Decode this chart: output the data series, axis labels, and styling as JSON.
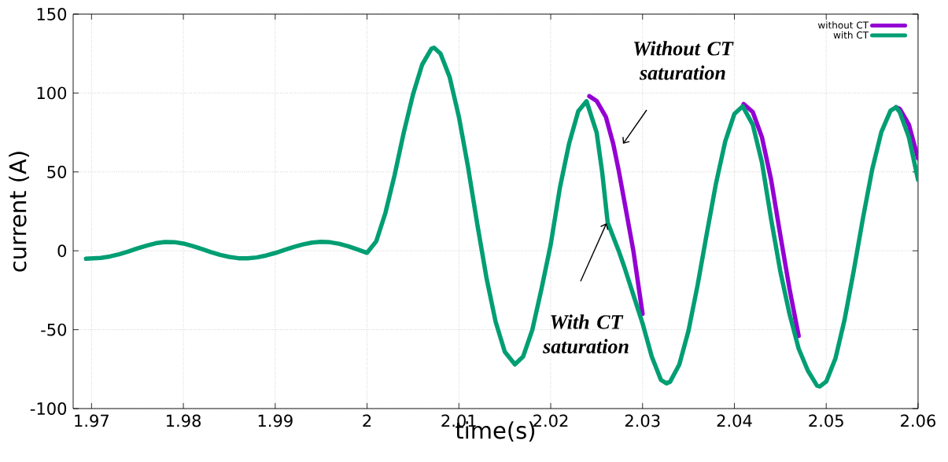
{
  "chart_data": {
    "type": "line",
    "xlabel": "time(s)",
    "ylabel": "current (A)",
    "xlim": [
      1.968,
      2.06
    ],
    "ylim": [
      -100,
      150
    ],
    "xticks": [
      1.97,
      1.98,
      1.99,
      2,
      2.01,
      2.02,
      2.03,
      2.04,
      2.05,
      2.06
    ],
    "yticks": [
      -100,
      -50,
      0,
      50,
      100,
      150
    ],
    "grid": true,
    "legend": "top right",
    "line_style": "solid",
    "series": [
      {
        "name": "without CT",
        "color": "#9400d3",
        "x": [
          2.0242,
          2.025,
          2.026,
          2.0268,
          2.0274,
          2.028,
          2.029,
          2.03,
          2.035,
          2.041,
          2.042,
          2.043,
          2.044,
          2.045,
          2.046,
          2.047,
          2.052,
          2.0576,
          2.058,
          2.059,
          2.06
        ],
        "values": [
          98,
          95,
          85,
          68,
          51,
          32,
          0,
          -40,
          null,
          93,
          88,
          72,
          45,
          10,
          -24,
          -54,
          null,
          91,
          90,
          80,
          58.5
        ]
      },
      {
        "name": "with CT",
        "color": "#009e73",
        "x": [
          1.9694,
          1.971,
          1.972,
          1.973,
          1.974,
          1.975,
          1.976,
          1.977,
          1.978,
          1.979,
          1.98,
          1.981,
          1.982,
          1.983,
          1.984,
          1.985,
          1.986,
          1.987,
          1.988,
          1.989,
          1.99,
          1.991,
          1.992,
          1.993,
          1.994,
          1.995,
          1.996,
          1.997,
          1.998,
          1.999,
          2.0,
          2.001,
          2.002,
          2.003,
          2.004,
          2.005,
          2.006,
          2.007,
          2.0073,
          2.008,
          2.009,
          2.01,
          2.011,
          2.012,
          2.013,
          2.014,
          2.015,
          2.0161,
          2.017,
          2.018,
          2.019,
          2.02,
          2.021,
          2.022,
          2.023,
          2.0239,
          2.025,
          2.0256,
          2.0262,
          2.027,
          2.0274,
          2.028,
          2.029,
          2.03,
          2.031,
          2.032,
          2.0326,
          2.033,
          2.034,
          2.035,
          2.036,
          2.037,
          2.038,
          2.039,
          2.04,
          2.0409,
          2.042,
          2.043,
          2.044,
          2.045,
          2.046,
          2.047,
          2.048,
          2.049,
          2.0493,
          2.05,
          2.051,
          2.052,
          2.053,
          2.054,
          2.055,
          2.056,
          2.057,
          2.0576,
          2.058,
          2.059,
          2.06
        ],
        "values": [
          -5,
          -4.5,
          -3.6,
          -2.2,
          -0.5,
          1.5,
          3.3,
          4.8,
          5.6,
          5.5,
          4.6,
          3.0,
          1.2,
          -0.8,
          -2.6,
          -3.9,
          -4.7,
          -4.7,
          -4.2,
          -3.0,
          -1.4,
          0.5,
          2.4,
          4.0,
          5.2,
          5.7,
          5.4,
          4.4,
          2.8,
          0.8,
          -1.3,
          6,
          24,
          48,
          75,
          99,
          118,
          128,
          128.7,
          125,
          110,
          85,
          53,
          17,
          -17,
          -45,
          -64,
          -72,
          -67,
          -50,
          -24,
          4,
          40,
          68,
          88.5,
          94.8,
          75,
          50,
          18,
          6,
          0,
          -10,
          -28,
          -46,
          -67,
          -81.8,
          -84,
          -83,
          -72.1,
          -50.7,
          -21.6,
          11.1,
          42.8,
          69.3,
          86.8,
          91.6,
          80,
          56,
          20,
          -13,
          -40,
          -62,
          -76,
          -85.5,
          -86,
          -82.9,
          -68.3,
          -43.6,
          -12.5,
          20.7,
          51.4,
          75.2,
          88.8,
          91,
          88,
          72,
          45
        ]
      }
    ],
    "annotations": [
      "Without CT saturation",
      "With CT saturation"
    ]
  }
}
